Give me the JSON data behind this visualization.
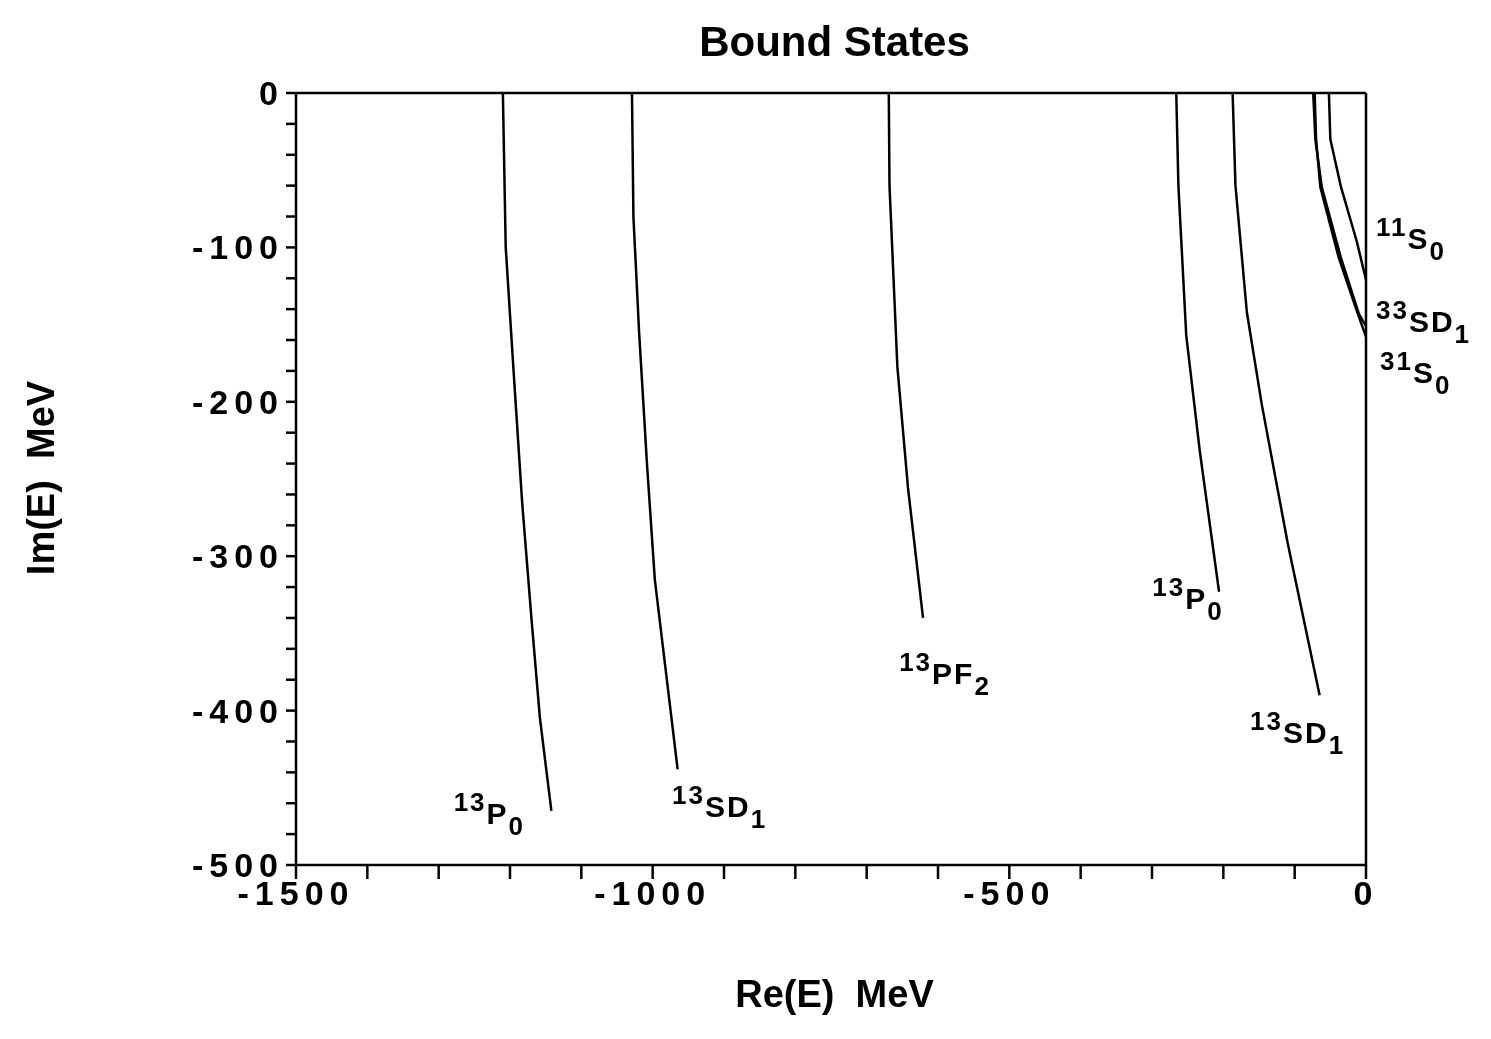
{
  "chart_data": {
    "type": "line",
    "title": "Bound States",
    "xlabel": "Re(E)  MeV",
    "ylabel": "Im(E)  MeV",
    "xlim": [
      -1500,
      0
    ],
    "ylim": [
      -500,
      0
    ],
    "xticks": [
      -1500,
      {
        "value": -1400,
        "label": null
      },
      {
        "value": -1300,
        "label": null
      },
      {
        "value": -1200,
        "label": null
      },
      {
        "value": -1100,
        "label": null
      },
      -1000,
      {
        "value": -900,
        "label": null
      },
      {
        "value": -800,
        "label": null
      },
      {
        "value": -700,
        "label": null
      },
      {
        "value": -600,
        "label": null
      },
      -500,
      {
        "value": -400,
        "label": null
      },
      {
        "value": -300,
        "label": null
      },
      {
        "value": -200,
        "label": null
      },
      {
        "value": -100,
        "label": null
      },
      0
    ],
    "yticks": [
      -500,
      {
        "value": -480,
        "label": null
      },
      {
        "value": -460,
        "label": null
      },
      {
        "value": -440,
        "label": null
      },
      {
        "value": -420,
        "label": null
      },
      -400,
      {
        "value": -380,
        "label": null
      },
      {
        "value": -360,
        "label": null
      },
      {
        "value": -340,
        "label": null
      },
      {
        "value": -320,
        "label": null
      },
      -300,
      {
        "value": -280,
        "label": null
      },
      {
        "value": -260,
        "label": null
      },
      {
        "value": -240,
        "label": null
      },
      {
        "value": -220,
        "label": null
      },
      -200,
      {
        "value": -180,
        "label": null
      },
      {
        "value": -160,
        "label": null
      },
      {
        "value": -140,
        "label": null
      },
      {
        "value": -120,
        "label": null
      },
      -100,
      {
        "value": -80,
        "label": null
      },
      {
        "value": -60,
        "label": null
      },
      {
        "value": -40,
        "label": null
      },
      {
        "value": -20,
        "label": null
      },
      0
    ],
    "legend": false,
    "marker": "none",
    "line_style": "solid",
    "series": [
      {
        "name": "$^{13}$P$_{0}$",
        "color": "#000000",
        "x": [
          -1210,
          -1206,
          -1195,
          -1183,
          -1170,
          -1158,
          -1142
        ],
        "values": [
          0,
          -100,
          -180,
          -265,
          -340,
          -405,
          -465
        ]
      },
      {
        "name": "$^{13}$SD$_{1}$",
        "color": "#000000",
        "x": [
          -1029,
          -1027,
          -1019,
          -1008,
          -997,
          -984,
          -965
        ],
        "values": [
          0,
          -80,
          -155,
          -240,
          -315,
          -365,
          -438
        ]
      },
      {
        "name": "$^{13}$PF$_{2}$",
        "color": "#000000",
        "x": [
          -669,
          -668,
          -657,
          -642,
          -621
        ],
        "values": [
          0,
          -60,
          -177,
          -256,
          -340
        ]
      },
      {
        "name": "$^{13}$P$_{0}$",
        "color": "#000000",
        "x": [
          -266,
          -263,
          -252,
          -233,
          -206
        ],
        "values": [
          0,
          -60,
          -157,
          -232,
          -323
        ]
      },
      {
        "name": "$^{13}$SD$_{1}$",
        "color": "#000000",
        "x": [
          -187,
          -183,
          -167,
          -146,
          -110,
          -65
        ],
        "values": [
          0,
          -60,
          -142,
          -202,
          -291,
          -390
        ]
      },
      {
        "name": "$^{11}$S$_{0}$",
        "color": "#000000",
        "x": [
          -52,
          -50,
          -35,
          -13,
          0
        ],
        "values": [
          0,
          -30,
          -61,
          -96,
          -121
        ]
      },
      {
        "name": "$^{31}$S$_{0}$",
        "color": "#000000",
        "x": [
          -72,
          -70,
          -64,
          -38,
          -13,
          0
        ],
        "values": [
          0,
          -30,
          -61,
          -107,
          -141,
          -158
        ]
      },
      {
        "name": "$^{33}$SD$_{1}$",
        "color": "#000000",
        "x": [
          -74,
          -71,
          -62,
          -35,
          -10,
          0
        ],
        "values": [
          0,
          -30,
          -61,
          -107,
          -143,
          -151
        ]
      }
    ]
  }
}
